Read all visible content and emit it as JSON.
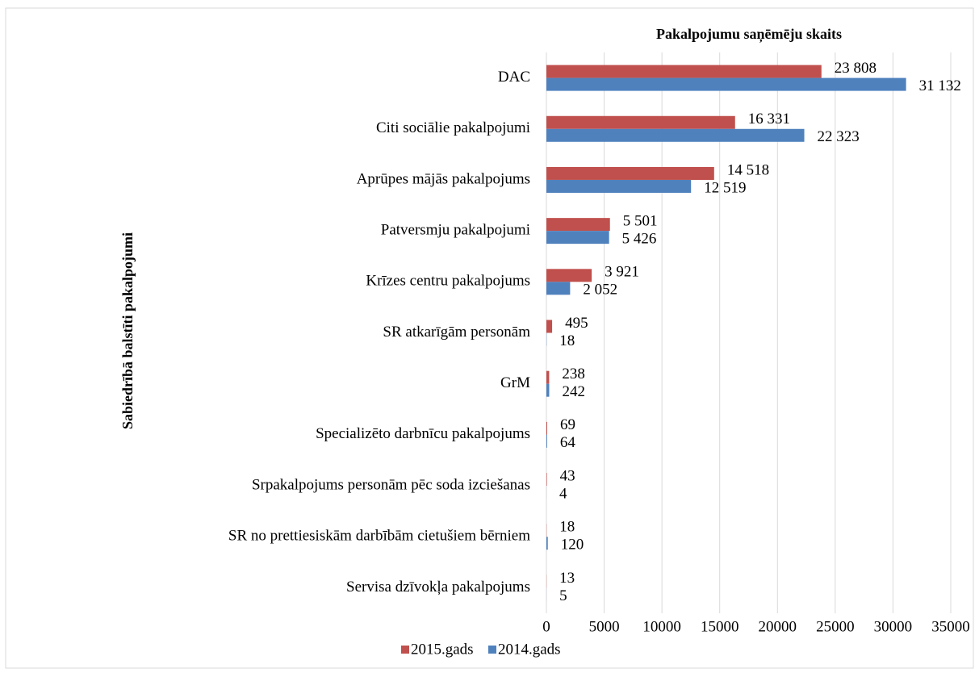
{
  "chart_data": {
    "type": "bar",
    "orientation": "horizontal",
    "title": "Pakalpojumu saņēmēju skaits",
    "y_axis_label": "Sabiedrībā balstīti pakalpojumi",
    "categories": [
      "DAC",
      "Citi sociālie pakalpojumi",
      "Aprūpes mājās pakalpojums",
      "Patversmju  pakalpojumi",
      "Krīzes centru pakalpojums",
      "SR atkarīgām personām",
      "GrM",
      "Specializēto darbnīcu pakalpojums",
      "Srpakalpojums personām pēc soda izciešanas",
      "SR no prettiesiskām darbībām cietušiem bērniem",
      "Servisa dzīvokļa pakalpojums"
    ],
    "series": [
      {
        "name": "2015.gads",
        "color": "#c0504d",
        "values": [
          23808,
          16331,
          14518,
          5501,
          3921,
          495,
          238,
          69,
          43,
          18,
          13
        ],
        "value_labels": [
          "23 808",
          "16 331",
          "14 518",
          "5 501",
          "3 921",
          "495",
          "238",
          "69",
          "43",
          "18",
          "13"
        ]
      },
      {
        "name": "2014.gads",
        "color": "#4f81bd",
        "values": [
          31132,
          22323,
          12519,
          5426,
          2052,
          18,
          242,
          64,
          4,
          120,
          5
        ],
        "value_labels": [
          "31 132",
          "22 323",
          "12 519",
          "5 426",
          "2 052",
          "18",
          "242",
          "64",
          "4",
          "120",
          "5"
        ]
      }
    ],
    "xlim": [
      0,
      35000
    ],
    "xticks": [
      0,
      5000,
      10000,
      15000,
      20000,
      25000,
      30000,
      35000
    ],
    "grid": true,
    "legend": "bottom"
  }
}
